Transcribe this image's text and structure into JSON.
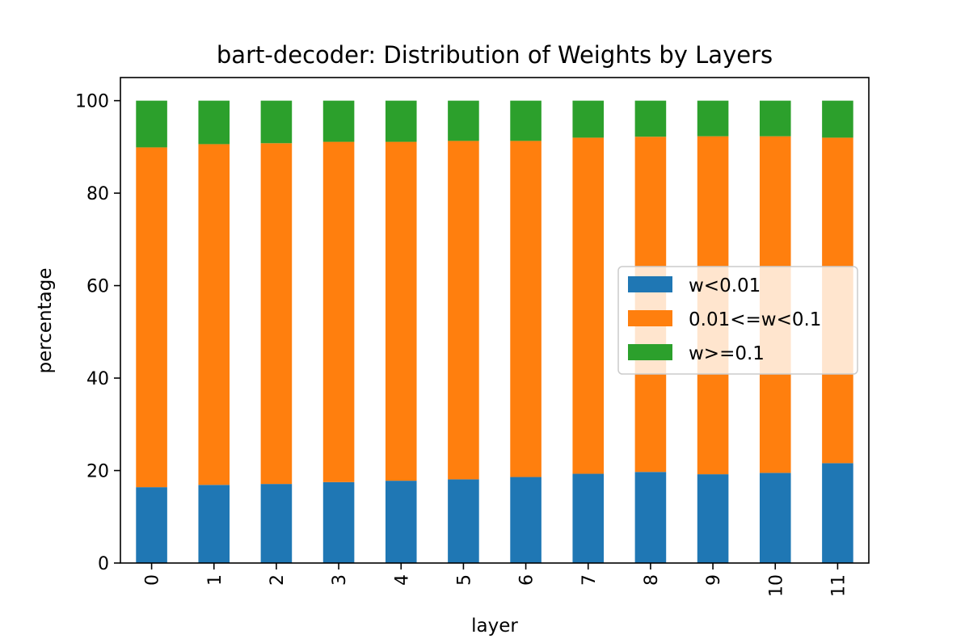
{
  "chart_data": {
    "type": "bar",
    "stacked": true,
    "title": "bart-decoder: Distribution of Weights by Layers",
    "xlabel": "layer",
    "ylabel": "percentage",
    "categories": [
      "0",
      "1",
      "2",
      "3",
      "4",
      "5",
      "6",
      "7",
      "8",
      "9",
      "10",
      "11"
    ],
    "ylim": [
      0,
      105
    ],
    "yticks": [
      0,
      20,
      40,
      60,
      80,
      100
    ],
    "series": [
      {
        "name": "w<0.01",
        "color": "#1f77b4",
        "values": [
          16.4,
          16.9,
          17.1,
          17.5,
          17.8,
          18.1,
          18.6,
          19.3,
          19.7,
          19.2,
          19.5,
          21.6
        ]
      },
      {
        "name": "0.01<=w<0.1",
        "color": "#ff7f0e",
        "values": [
          73.5,
          73.7,
          73.7,
          73.6,
          73.3,
          73.2,
          72.7,
          72.7,
          72.5,
          73.1,
          72.8,
          70.4
        ]
      },
      {
        "name": "w>=0.1",
        "color": "#2ca02c",
        "values": [
          10.1,
          9.4,
          9.2,
          8.9,
          8.9,
          8.7,
          8.7,
          8.0,
          7.8,
          7.7,
          7.7,
          8.0
        ]
      }
    ],
    "legend": {
      "position": "center-right"
    },
    "grid": false
  }
}
